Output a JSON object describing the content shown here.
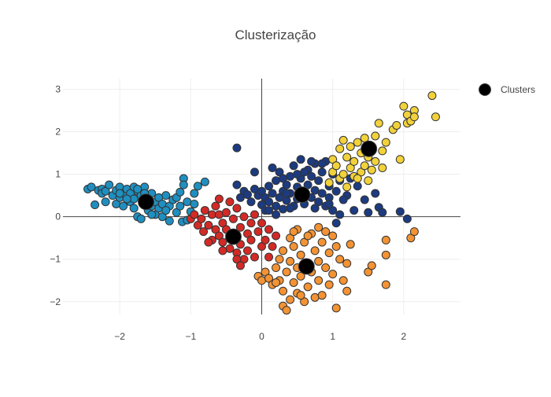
{
  "chart_data": {
    "type": "scatter",
    "title": "Clusterização",
    "xlabel": "",
    "ylabel": "",
    "xlim": [
      -2.8,
      2.8
    ],
    "ylim": [
      -2.3,
      3.25
    ],
    "x_ticks": [
      -2,
      -1,
      0,
      1,
      2
    ],
    "x_tick_labels": [
      "−2",
      "−1",
      "0",
      "1",
      "2"
    ],
    "y_ticks": [
      -2,
      -1,
      0,
      1,
      2,
      3
    ],
    "y_tick_labels": [
      "−2",
      "−1",
      "0",
      "1",
      "2",
      "3"
    ],
    "grid": true,
    "zero_lines": true,
    "legend": {
      "position": "top-right",
      "entries": [
        "Clusters"
      ]
    },
    "series": [
      {
        "cluster": 0,
        "color": "#1f8fc0",
        "points": [
          [
            -2.45,
            0.65
          ],
          [
            -2.4,
            0.7
          ],
          [
            -2.35,
            0.28
          ],
          [
            -2.3,
            0.62
          ],
          [
            -2.25,
            0.65
          ],
          [
            -2.25,
            0.55
          ],
          [
            -2.2,
            0.6
          ],
          [
            -2.2,
            0.35
          ],
          [
            -2.15,
            0.75
          ],
          [
            -2.1,
            0.5
          ],
          [
            -2.05,
            0.62
          ],
          [
            -2.05,
            0.3
          ],
          [
            -2.0,
            0.7
          ],
          [
            -2.0,
            0.45
          ],
          [
            -1.95,
            0.55
          ],
          [
            -1.95,
            0.25
          ],
          [
            -1.9,
            0.65
          ],
          [
            -1.85,
            0.35
          ],
          [
            -1.85,
            0.55
          ],
          [
            -1.8,
            0.7
          ],
          [
            -1.8,
            0.42
          ],
          [
            -1.8,
            0.2
          ],
          [
            -1.75,
            0.6
          ],
          [
            -1.75,
            0.0
          ],
          [
            -1.7,
            0.5
          ],
          [
            -1.7,
            -0.05
          ],
          [
            -1.65,
            0.7
          ],
          [
            -1.65,
            0.3
          ],
          [
            -1.6,
            0.45
          ],
          [
            -1.6,
            0.15
          ],
          [
            -1.55,
            0.55
          ],
          [
            -1.55,
            0.25
          ],
          [
            -1.5,
            0.35
          ],
          [
            -1.5,
            0.05
          ],
          [
            -1.45,
            0.45
          ],
          [
            -1.45,
            0.2
          ],
          [
            -1.4,
            0.3
          ],
          [
            -1.4,
            0.0
          ],
          [
            -1.35,
            0.5
          ],
          [
            -1.3,
            0.25
          ],
          [
            -1.3,
            -0.1
          ],
          [
            -1.25,
            0.4
          ],
          [
            -1.2,
            0.1
          ],
          [
            -1.2,
            0.45
          ],
          [
            -1.15,
            0.25
          ],
          [
            -1.12,
            -0.12
          ],
          [
            -1.1,
            0.9
          ],
          [
            -1.1,
            0.75
          ],
          [
            -1.05,
            0.35
          ],
          [
            -1.0,
            0.12
          ],
          [
            -0.95,
            0.55
          ],
          [
            -0.95,
            0.3
          ],
          [
            -0.9,
            0.72
          ],
          [
            -0.8,
            0.82
          ],
          [
            -1.75,
            0.65
          ],
          [
            -1.65,
            0.55
          ],
          [
            -1.9,
            0.42
          ],
          [
            -2.0,
            0.55
          ],
          [
            -1.55,
            0.05
          ],
          [
            -1.35,
            0.15
          ],
          [
            -1.15,
            0.58
          ],
          [
            -1.05,
            -0.08
          ]
        ]
      },
      {
        "cluster": 1,
        "color": "#1c3b80",
        "points": [
          [
            -0.35,
            1.62
          ],
          [
            -0.35,
            0.75
          ],
          [
            -0.3,
            0.45
          ],
          [
            -0.25,
            0.6
          ],
          [
            -0.2,
            0.52
          ],
          [
            -0.15,
            0.35
          ],
          [
            -0.1,
            0.65
          ],
          [
            -0.1,
            1.05
          ],
          [
            -0.05,
            0.5
          ],
          [
            0.0,
            0.28
          ],
          [
            0.0,
            0.6
          ],
          [
            0.05,
            0.45
          ],
          [
            0.05,
            0.15
          ],
          [
            0.1,
            0.35
          ],
          [
            0.1,
            0.72
          ],
          [
            0.15,
            1.15
          ],
          [
            0.15,
            0.55
          ],
          [
            0.2,
            0.25
          ],
          [
            0.2,
            0.85
          ],
          [
            0.25,
            0.45
          ],
          [
            0.25,
            1.05
          ],
          [
            0.3,
            0.6
          ],
          [
            0.3,
            0.18
          ],
          [
            0.35,
            0.75
          ],
          [
            0.35,
            0.38
          ],
          [
            0.4,
            0.95
          ],
          [
            0.4,
            0.55
          ],
          [
            0.45,
            0.25
          ],
          [
            0.45,
            1.2
          ],
          [
            0.5,
            0.7
          ],
          [
            0.5,
            0.42
          ],
          [
            0.55,
            0.9
          ],
          [
            0.55,
            1.35
          ],
          [
            0.6,
            0.6
          ],
          [
            0.6,
            0.3
          ],
          [
            0.65,
            1.1
          ],
          [
            0.65,
            0.75
          ],
          [
            0.7,
            0.45
          ],
          [
            0.7,
            0.95
          ],
          [
            0.75,
            1.25
          ],
          [
            0.75,
            0.62
          ],
          [
            0.8,
            0.35
          ],
          [
            0.8,
            0.85
          ],
          [
            0.85,
            1.05
          ],
          [
            0.85,
            0.55
          ],
          [
            0.9,
            1.3
          ],
          [
            0.9,
            0.25
          ],
          [
            0.95,
            0.72
          ],
          [
            0.95,
            0.45
          ],
          [
            1.0,
            1.0
          ],
          [
            1.0,
            0.15
          ],
          [
            1.05,
            0.6
          ],
          [
            1.05,
            -0.15
          ],
          [
            1.1,
            0.85
          ],
          [
            1.1,
            0.05
          ],
          [
            1.2,
            0.5
          ],
          [
            1.25,
            0.9
          ],
          [
            1.3,
            0.15
          ],
          [
            1.35,
            0.72
          ],
          [
            1.45,
            0.4
          ],
          [
            1.5,
            0.1
          ],
          [
            1.6,
            0.55
          ],
          [
            1.65,
            0.22
          ],
          [
            1.7,
            0.1
          ],
          [
            1.95,
            0.12
          ],
          [
            2.05,
            -0.05
          ],
          [
            0.3,
            0.9
          ],
          [
            0.5,
            1.0
          ],
          [
            0.2,
            0.05
          ],
          [
            0.7,
            1.3
          ],
          [
            0.85,
            1.25
          ],
          [
            0.1,
            0.15
          ],
          [
            0.4,
            0.2
          ],
          [
            0.6,
            1.05
          ],
          [
            0.95,
            0.3
          ],
          [
            1.15,
            0.4
          ],
          [
            0.35,
            0.55
          ],
          [
            0.75,
            0.2
          ]
        ]
      },
      {
        "cluster": 2,
        "color": "#d32a26",
        "points": [
          [
            -1.0,
            -0.05
          ],
          [
            -0.95,
            0.05
          ],
          [
            -0.9,
            -0.2
          ],
          [
            -0.85,
            -0.05
          ],
          [
            -0.82,
            -0.35
          ],
          [
            -0.8,
            0.15
          ],
          [
            -0.75,
            -0.2
          ],
          [
            -0.7,
            0.05
          ],
          [
            -0.7,
            -0.55
          ],
          [
            -0.65,
            -0.3
          ],
          [
            -0.65,
            0.25
          ],
          [
            -0.6,
            0.05
          ],
          [
            -0.6,
            -0.45
          ],
          [
            -0.55,
            -0.15
          ],
          [
            -0.55,
            -0.6
          ],
          [
            -0.5,
            0.1
          ],
          [
            -0.5,
            -0.3
          ],
          [
            -0.45,
            0.35
          ],
          [
            -0.45,
            -0.75
          ],
          [
            -0.4,
            -0.05
          ],
          [
            -0.4,
            -0.5
          ],
          [
            -0.35,
            0.2
          ],
          [
            -0.35,
            -0.85
          ],
          [
            -0.3,
            -0.25
          ],
          [
            -0.3,
            -0.65
          ],
          [
            -0.25,
            0.0
          ],
          [
            -0.25,
            -1.0
          ],
          [
            -0.2,
            -0.4
          ],
          [
            -0.2,
            -0.8
          ],
          [
            -0.15,
            -0.15
          ],
          [
            -0.15,
            -0.55
          ],
          [
            -0.1,
            0.05
          ],
          [
            -0.1,
            -0.95
          ],
          [
            -0.05,
            -0.35
          ],
          [
            0.0,
            -0.7
          ],
          [
            0.0,
            -0.15
          ],
          [
            0.05,
            -0.55
          ],
          [
            0.1,
            -0.3
          ],
          [
            0.1,
            -0.95
          ],
          [
            0.15,
            -0.7
          ],
          [
            0.2,
            -0.45
          ],
          [
            -0.6,
            0.42
          ],
          [
            -0.35,
            -1.0
          ],
          [
            -0.55,
            -0.8
          ],
          [
            -0.3,
            -1.15
          ],
          [
            -0.75,
            -0.6
          ]
        ]
      },
      {
        "cluster": 3,
        "color": "#f39334",
        "points": [
          [
            -0.05,
            -1.4
          ],
          [
            0.0,
            -1.5
          ],
          [
            0.05,
            -1.3
          ],
          [
            0.1,
            -1.45
          ],
          [
            0.15,
            -1.6
          ],
          [
            0.2,
            -1.2
          ],
          [
            0.25,
            -1.0
          ],
          [
            0.25,
            -1.5
          ],
          [
            0.3,
            -0.8
          ],
          [
            0.3,
            -1.75
          ],
          [
            0.3,
            -2.1
          ],
          [
            0.35,
            -1.3
          ],
          [
            0.35,
            -2.2
          ],
          [
            0.4,
            -0.5
          ],
          [
            0.4,
            -1.05
          ],
          [
            0.4,
            -1.95
          ],
          [
            0.45,
            -0.7
          ],
          [
            0.45,
            -1.55
          ],
          [
            0.5,
            -0.3
          ],
          [
            0.5,
            -1.2
          ],
          [
            0.5,
            -1.8
          ],
          [
            0.55,
            -0.9
          ],
          [
            0.55,
            -1.4
          ],
          [
            0.6,
            -0.6
          ],
          [
            0.6,
            -2.0
          ],
          [
            0.65,
            -1.1
          ],
          [
            0.65,
            -1.65
          ],
          [
            0.7,
            -0.4
          ],
          [
            0.7,
            -1.3
          ],
          [
            0.75,
            -0.8
          ],
          [
            0.75,
            -1.9
          ],
          [
            0.8,
            -1.05
          ],
          [
            0.8,
            -1.5
          ],
          [
            0.85,
            -0.6
          ],
          [
            0.85,
            -1.85
          ],
          [
            0.9,
            -1.2
          ],
          [
            0.9,
            -0.35
          ],
          [
            0.95,
            -1.6
          ],
          [
            0.95,
            -0.85
          ],
          [
            1.0,
            -1.35
          ],
          [
            1.05,
            -0.7
          ],
          [
            1.05,
            -2.15
          ],
          [
            1.1,
            -1.0
          ],
          [
            1.15,
            -1.5
          ],
          [
            1.2,
            -1.75
          ],
          [
            1.25,
            -0.65
          ],
          [
            1.5,
            -1.3
          ],
          [
            1.55,
            -1.15
          ],
          [
            1.75,
            -0.9
          ],
          [
            1.75,
            -0.55
          ],
          [
            1.75,
            -1.6
          ],
          [
            2.1,
            -0.5
          ],
          [
            2.15,
            -0.35
          ],
          [
            0.2,
            -1.55
          ],
          [
            0.45,
            -0.35
          ],
          [
            0.65,
            -0.45
          ],
          [
            0.55,
            -1.85
          ],
          [
            0.8,
            -0.25
          ],
          [
            1.0,
            -0.45
          ],
          [
            1.2,
            -1.1
          ]
        ]
      },
      {
        "cluster": 4,
        "color": "#f2d23b",
        "points": [
          [
            0.95,
            0.8
          ],
          [
            1.0,
            1.05
          ],
          [
            1.0,
            1.35
          ],
          [
            1.05,
            1.2
          ],
          [
            1.1,
            1.6
          ],
          [
            1.1,
            0.9
          ],
          [
            1.15,
            1.8
          ],
          [
            1.15,
            1.0
          ],
          [
            1.2,
            1.4
          ],
          [
            1.25,
            1.15
          ],
          [
            1.25,
            1.65
          ],
          [
            1.3,
            0.95
          ],
          [
            1.3,
            1.3
          ],
          [
            1.35,
            1.75
          ],
          [
            1.4,
            1.05
          ],
          [
            1.4,
            1.5
          ],
          [
            1.45,
            1.2
          ],
          [
            1.45,
            1.85
          ],
          [
            1.5,
            0.85
          ],
          [
            1.5,
            1.4
          ],
          [
            1.55,
            1.1
          ],
          [
            1.55,
            1.65
          ],
          [
            1.6,
            1.9
          ],
          [
            1.6,
            1.3
          ],
          [
            1.65,
            2.2
          ],
          [
            1.7,
            1.55
          ],
          [
            1.7,
            1.15
          ],
          [
            1.75,
            1.75
          ],
          [
            1.85,
            2.05
          ],
          [
            1.9,
            2.15
          ],
          [
            1.95,
            1.35
          ],
          [
            2.0,
            2.6
          ],
          [
            2.05,
            2.2
          ],
          [
            2.05,
            2.4
          ],
          [
            2.1,
            2.25
          ],
          [
            2.15,
            2.5
          ],
          [
            2.15,
            2.35
          ],
          [
            2.4,
            2.85
          ],
          [
            2.45,
            2.35
          ],
          [
            1.35,
            0.9
          ],
          [
            1.2,
            0.7
          ]
        ]
      }
    ],
    "centroids": [
      [
        -1.63,
        0.35
      ],
      [
        0.57,
        0.52
      ],
      [
        -0.4,
        -0.47
      ],
      [
        0.63,
        -1.17
      ],
      [
        1.51,
        1.6
      ]
    ],
    "centroid_series_name": "Clusters",
    "centroid_color": "#000000"
  }
}
